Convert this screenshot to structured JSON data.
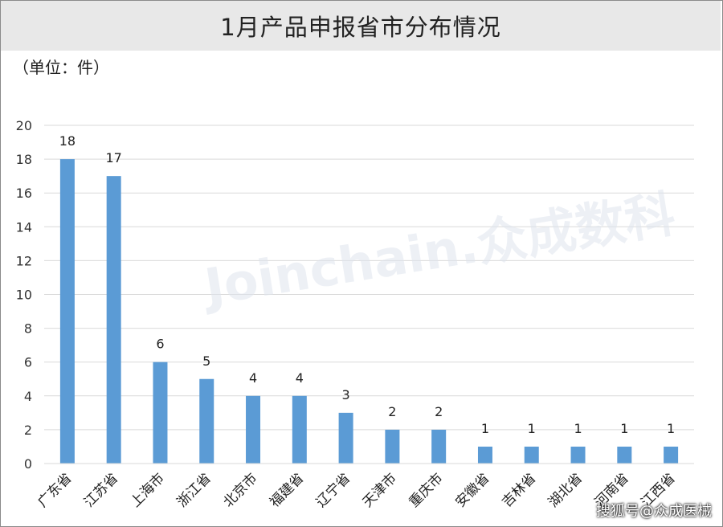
{
  "title": "1月产品申报省市分布情况",
  "unit_label": "（单位：件）",
  "watermark_text": "Joinchain.众成数科",
  "credit_text": "搜狐号@众成医械",
  "chart_data": {
    "type": "bar",
    "title": "1月产品申报省市分布情况",
    "categories": [
      "广东省",
      "江苏省",
      "上海市",
      "浙江省",
      "北京市",
      "福建省",
      "辽宁省",
      "天津市",
      "重庆市",
      "安徽省",
      "吉林省",
      "湖北省",
      "河南省",
      "江西省"
    ],
    "values": [
      18,
      17,
      6,
      5,
      4,
      4,
      3,
      2,
      2,
      1,
      1,
      1,
      1,
      1
    ],
    "ylim": [
      0,
      20
    ],
    "yticks": [
      0,
      2,
      4,
      6,
      8,
      10,
      12,
      14,
      16,
      18,
      20
    ],
    "grid": true,
    "bar_color": "#5b9bd5",
    "data_labels": true
  }
}
